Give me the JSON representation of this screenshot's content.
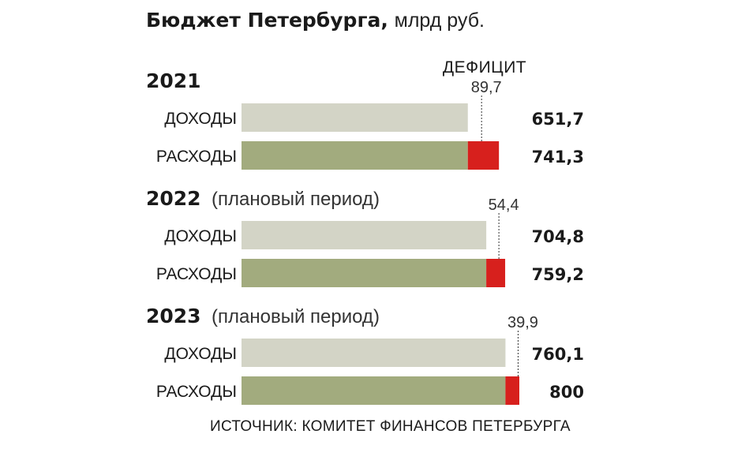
{
  "title": {
    "main": "Бюджет Петербурга,",
    "unit": "млрд руб."
  },
  "deficit_label": "ДЕФИЦИТ",
  "source": "ИСТОЧНИК: КОМИТЕТ ФИНАНСОВ ПЕТЕРБУРГА",
  "colors": {
    "income_bar": "#d3d4c6",
    "expense_bar": "#a2ab7e",
    "deficit": "#d7201d",
    "text": "#1a1a1a"
  },
  "chart_data": {
    "type": "bar",
    "orientation": "horizontal",
    "xlim": [
      0,
      800
    ],
    "groups": [
      {
        "year": "2021",
        "note": "",
        "rows": [
          {
            "label": "ДОХОДЫ",
            "value": 651.7,
            "value_label": "651,7"
          },
          {
            "label": "РАСХОДЫ",
            "value": 741.3,
            "value_label": "741,3"
          }
        ],
        "deficit": 89.7,
        "deficit_label": "89,7"
      },
      {
        "year": "2022",
        "note": "(плановый период)",
        "rows": [
          {
            "label": "ДОХОДЫ",
            "value": 704.8,
            "value_label": "704,8"
          },
          {
            "label": "РАСХОДЫ",
            "value": 759.2,
            "value_label": "759,2"
          }
        ],
        "deficit": 54.4,
        "deficit_label": "54,4"
      },
      {
        "year": "2023",
        "note": "(плановый период)",
        "rows": [
          {
            "label": "ДОХОДЫ",
            "value": 760.1,
            "value_label": "760,1"
          },
          {
            "label": "РАСХОДЫ",
            "value": 800,
            "value_label": "800"
          }
        ],
        "deficit": 39.9,
        "deficit_label": "39,9"
      }
    ]
  }
}
